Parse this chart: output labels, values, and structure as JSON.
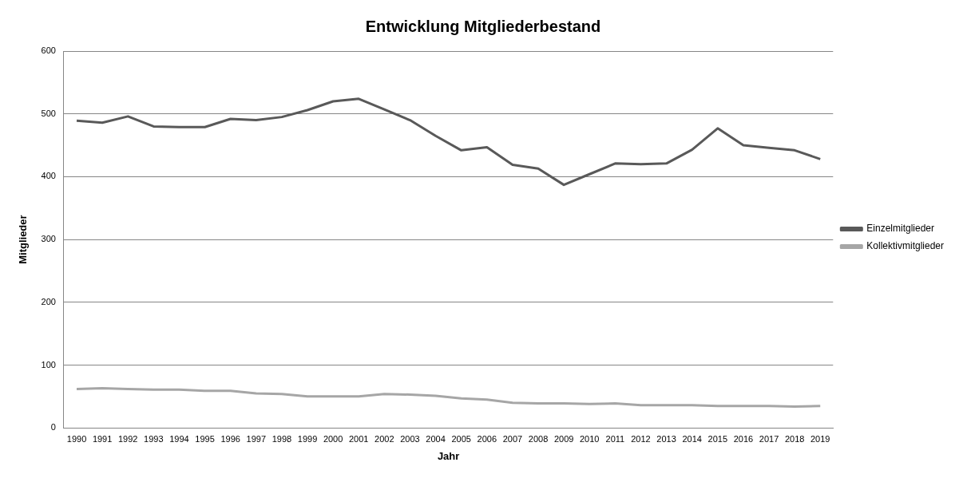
{
  "chart_data": {
    "type": "line",
    "title": "Entwicklung Mitgliederbestand",
    "xlabel": "Jahr",
    "ylabel": "Mitglieder",
    "categories": [
      "1990",
      "1991",
      "1992",
      "1993",
      "1994",
      "1995",
      "1996",
      "1997",
      "1998",
      "1999",
      "2000",
      "2001",
      "2002",
      "2003",
      "2004",
      "2005",
      "2006",
      "2007",
      "2008",
      "2009",
      "2010",
      "2011",
      "2012",
      "2013",
      "2014",
      "2015",
      "2016",
      "2017",
      "2018",
      "2019"
    ],
    "series": [
      {
        "name": "Einzelmitglieder",
        "color": "#595959",
        "values": [
          489,
          486,
          496,
          480,
          479,
          479,
          492,
          490,
          495,
          506,
          520,
          524,
          507,
          490,
          465,
          442,
          447,
          419,
          413,
          387,
          404,
          421,
          420,
          421,
          443,
          477,
          450,
          446,
          442,
          428
        ]
      },
      {
        "name": "Kollektivmitglieder",
        "color": "#a6a6a6",
        "values": [
          62,
          63,
          62,
          61,
          61,
          59,
          59,
          55,
          54,
          50,
          50,
          50,
          54,
          53,
          51,
          47,
          45,
          40,
          39,
          39,
          38,
          39,
          36,
          36,
          36,
          35,
          35,
          35,
          34,
          35
        ]
      }
    ],
    "ylim": [
      0,
      600
    ],
    "yticks": [
      0,
      100,
      200,
      300,
      400,
      500,
      600
    ],
    "grid": "y",
    "legend": "right",
    "marker": "none",
    "line_style": "solid"
  }
}
